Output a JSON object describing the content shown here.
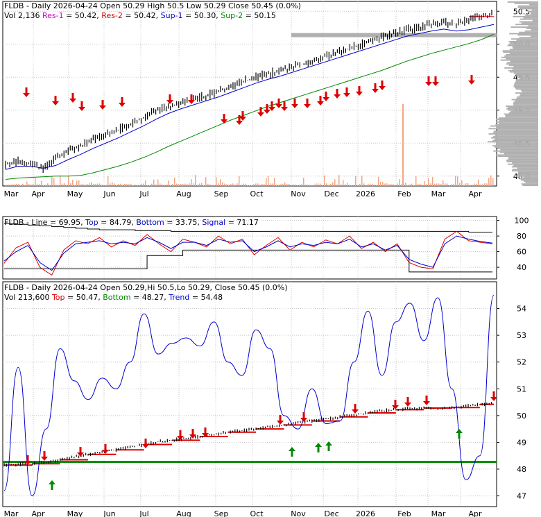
{
  "chart_data": [
    {
      "type": "line",
      "panel": "price",
      "header_line1": [
        {
          "text": "FLDB - Daily 2026-04-24 Open 50.29  High 50.5  Low 50.29  Close 50.45 (0.0%)",
          "color": "#000000"
        }
      ],
      "header_line2": [
        {
          "text": "Vol 2,136",
          "color": "#000000"
        },
        {
          "text": "Res-1",
          "color": "#cc00cc"
        },
        {
          "text": "= 50.42,",
          "color": "#000000"
        },
        {
          "text": "Res-2",
          "color": "#dd0000"
        },
        {
          "text": "= 50.42,",
          "color": "#000000"
        },
        {
          "text": "Sup-1",
          "color": "#0000cc"
        },
        {
          "text": "= 50.30,",
          "color": "#000000"
        },
        {
          "text": "Sup-2",
          "color": "#008800"
        },
        {
          "text": "= 50.15",
          "color": "#000000"
        }
      ],
      "ylim": [
        47.85,
        50.65
      ],
      "yticks": [
        "48.0",
        "48.5",
        "49.0",
        "49.5",
        "50.0",
        "50.5"
      ],
      "ytick_values": [
        48.0,
        48.5,
        49.0,
        49.5,
        50.0,
        50.5
      ],
      "months": [
        "Mar",
        "Apr",
        "May",
        "Jun",
        "Jul",
        "Aug",
        "Sep",
        "Oct",
        "Nov",
        "Dec",
        "2026",
        "Feb",
        "Mar",
        "Apr"
      ],
      "price": [
        48.18,
        48.22,
        48.2,
        48.1,
        48.28,
        48.38,
        48.45,
        48.55,
        48.62,
        48.7,
        48.8,
        48.88,
        49.0,
        49.05,
        49.1,
        49.15,
        49.22,
        49.28,
        49.36,
        49.44,
        49.5,
        49.55,
        49.6,
        49.66,
        49.72,
        49.78,
        49.84,
        49.9,
        49.97,
        50.03,
        50.1,
        50.16,
        50.22,
        50.25,
        50.3,
        50.33,
        50.3,
        50.38,
        50.42,
        50.45
      ],
      "series": [
        {
          "name": "Sup-1",
          "color": "#0000cc",
          "values": [
            48.1,
            48.15,
            48.15,
            48.12,
            48.16,
            48.25,
            48.33,
            48.42,
            48.5,
            48.58,
            48.67,
            48.76,
            48.86,
            48.95,
            49.02,
            49.08,
            49.14,
            49.2,
            49.27,
            49.34,
            49.41,
            49.47,
            49.52,
            49.58,
            49.64,
            49.7,
            49.76,
            49.82,
            49.88,
            49.94,
            50.0,
            50.06,
            50.12,
            50.16,
            50.2,
            50.23,
            50.2,
            50.22,
            50.26,
            50.3
          ]
        },
        {
          "name": "Sup-2",
          "color": "#008800",
          "values": [
            47.95,
            47.97,
            47.98,
            47.99,
            48.0,
            48.0,
            48.01,
            48.05,
            48.1,
            48.15,
            48.21,
            48.28,
            48.36,
            48.45,
            48.53,
            48.61,
            48.69,
            48.77,
            48.85,
            48.92,
            48.99,
            49.06,
            49.12,
            49.18,
            49.24,
            49.3,
            49.36,
            49.42,
            49.48,
            49.54,
            49.6,
            49.67,
            49.74,
            49.8,
            49.86,
            49.91,
            49.96,
            50.01,
            50.07,
            50.15
          ]
        }
      ],
      "levels": [
        {
          "name": "Res-1",
          "color": "#cc00cc",
          "value": 50.42
        },
        {
          "name": "Res-2",
          "color": "#dd0000",
          "value": 50.42
        }
      ],
      "volume_spike_month": "Feb",
      "colors": {
        "down_arrow": "#dd0000",
        "up_arrow": "#008800",
        "volume_bars": "#f4a582",
        "volume_profile": "#b0b0b0"
      }
    },
    {
      "type": "line",
      "panel": "oscillator",
      "header_line1": [
        {
          "text": "FLDB - Line",
          "color": "#000000"
        },
        {
          "text": "= 69.95,",
          "color": "#000000"
        },
        {
          "text": "Top",
          "color": "#0000cc"
        },
        {
          "text": "= 84.79,",
          "color": "#000000"
        },
        {
          "text": "Bottom",
          "color": "#0000cc"
        },
        {
          "text": "= 33.75,",
          "color": "#000000"
        },
        {
          "text": "Signal",
          "color": "#0000cc"
        },
        {
          "text": "= 71.17",
          "color": "#000000"
        }
      ],
      "ylim": [
        25,
        105
      ],
      "yticks": [
        "40",
        "60",
        "80",
        "100"
      ],
      "ytick_values": [
        40,
        60,
        80,
        100
      ],
      "series": [
        {
          "name": "Line",
          "color": "#dd0000",
          "values": [
            45,
            65,
            72,
            40,
            30,
            62,
            74,
            70,
            78,
            66,
            74,
            68,
            82,
            70,
            60,
            76,
            72,
            66,
            80,
            70,
            76,
            56,
            68,
            78,
            62,
            72,
            66,
            75,
            70,
            80,
            64,
            72,
            60,
            70,
            46,
            40,
            38,
            76,
            86,
            74,
            72,
            70
          ]
        },
        {
          "name": "Signal",
          "color": "#0000cc",
          "values": [
            48,
            60,
            68,
            46,
            36,
            58,
            70,
            72,
            74,
            70,
            72,
            70,
            78,
            72,
            64,
            72,
            72,
            68,
            76,
            72,
            74,
            60,
            66,
            74,
            66,
            70,
            68,
            72,
            70,
            76,
            66,
            70,
            62,
            68,
            50,
            44,
            40,
            70,
            80,
            76,
            73,
            71
          ]
        },
        {
          "name": "Top",
          "color": "#000000",
          "values": [
            96,
            95,
            94,
            93,
            92,
            91,
            90,
            89,
            88,
            88,
            88,
            87,
            87,
            87,
            86,
            86,
            86,
            86,
            86,
            86,
            86,
            86,
            86,
            86,
            86,
            86,
            86,
            86,
            86,
            86,
            86,
            86,
            86,
            86,
            86,
            86,
            86,
            86,
            86,
            85,
            85,
            85
          ]
        },
        {
          "name": "Bottom",
          "color": "#000000",
          "values": [
            38,
            38,
            38,
            38,
            38,
            38,
            38,
            38,
            38,
            38,
            38,
            38,
            55,
            55,
            55,
            62,
            62,
            62,
            62,
            62,
            62,
            62,
            62,
            62,
            62,
            62,
            62,
            62,
            62,
            62,
            62,
            62,
            62,
            62,
            34,
            34,
            34,
            34,
            34,
            34,
            34,
            34
          ]
        }
      ]
    },
    {
      "type": "line",
      "panel": "trend",
      "header_line1": [
        {
          "text": "FLDB - Daily 2026-04-24 Open 50.29,Hi 50.5,Lo 50.29, Close 50.45 (0.0%)",
          "color": "#000000"
        }
      ],
      "header_line2": [
        {
          "text": "Vol 213,600",
          "color": "#000000"
        },
        {
          "text": "Top",
          "color": "#dd0000"
        },
        {
          "text": "= 50.47,",
          "color": "#000000"
        },
        {
          "text": "Bottom",
          "color": "#008800"
        },
        {
          "text": "= 48.27,",
          "color": "#000000"
        },
        {
          "text": "Trend",
          "color": "#0000cc"
        },
        {
          "text": "= 54.48",
          "color": "#000000"
        }
      ],
      "ylim": [
        46.6,
        55.0
      ],
      "yticks": [
        "47",
        "48",
        "49",
        "50",
        "51",
        "52",
        "53",
        "54"
      ],
      "ytick_values": [
        47,
        48,
        49,
        50,
        51,
        52,
        53,
        54
      ],
      "months": [
        "Mar",
        "Apr",
        "May",
        "Jun",
        "Jul",
        "Aug",
        "Sep",
        "Oct",
        "Nov",
        "Dec",
        "2026",
        "Feb",
        "Mar",
        "Apr"
      ],
      "price": [
        48.15,
        48.18,
        48.2,
        48.25,
        48.35,
        48.45,
        48.55,
        48.65,
        48.72,
        48.82,
        48.92,
        49.02,
        49.08,
        49.15,
        49.22,
        49.3,
        49.38,
        49.45,
        49.5,
        49.58,
        49.65,
        49.72,
        49.8,
        49.88,
        49.95,
        50.02,
        50.1,
        50.18,
        50.22,
        50.26,
        50.28,
        50.25,
        50.3,
        50.36,
        50.42,
        50.45
      ],
      "series": [
        {
          "name": "Trend",
          "color": "#0000cc",
          "values": [
            47.2,
            51.8,
            47.0,
            49.5,
            52.5,
            51.3,
            50.6,
            51.4,
            51.0,
            52.0,
            53.8,
            52.3,
            52.7,
            52.9,
            52.6,
            53.5,
            52.0,
            51.5,
            53.2,
            52.5,
            50.0,
            49.5,
            51.0,
            49.7,
            49.8,
            52.0,
            53.9,
            51.5,
            53.5,
            54.2,
            52.8,
            54.4,
            51.0,
            47.6,
            48.5,
            54.5
          ]
        }
      ],
      "levels": [
        {
          "name": "Top",
          "color": "#dd0000",
          "value": 50.47
        },
        {
          "name": "Bottom",
          "color": "#008800",
          "value": 48.27
        }
      ]
    }
  ]
}
